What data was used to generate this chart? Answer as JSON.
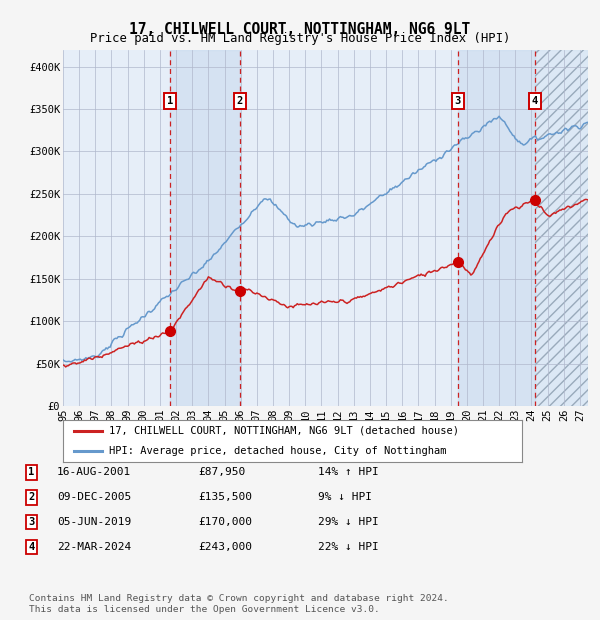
{
  "title": "17, CHILWELL COURT, NOTTINGHAM, NG6 9LT",
  "subtitle": "Price paid vs. HM Land Registry's House Price Index (HPI)",
  "ylim": [
    0,
    420000
  ],
  "yticks": [
    0,
    50000,
    100000,
    150000,
    200000,
    250000,
    300000,
    350000,
    400000
  ],
  "ytick_labels": [
    "£0",
    "£50K",
    "£100K",
    "£150K",
    "£200K",
    "£250K",
    "£300K",
    "£350K",
    "£400K"
  ],
  "xlim_start": 1995.3,
  "xlim_end": 2027.5,
  "xticks": [
    1995,
    1996,
    1997,
    1998,
    1999,
    2000,
    2001,
    2002,
    2003,
    2004,
    2005,
    2006,
    2007,
    2008,
    2009,
    2010,
    2011,
    2012,
    2013,
    2014,
    2015,
    2016,
    2017,
    2018,
    2019,
    2020,
    2021,
    2022,
    2023,
    2024,
    2025,
    2026,
    2027
  ],
  "background_color": "#f5f5f5",
  "plot_bg_color": "#e6eef8",
  "grid_color": "#b0b8cc",
  "hpi_line_color": "#6699cc",
  "price_line_color": "#cc2222",
  "sale_dot_color": "#cc0000",
  "vline_color": "#cc2222",
  "shade_color": "#ccddf0",
  "sale_events": [
    {
      "label": "1",
      "year": 2001.62,
      "price": 87950
    },
    {
      "label": "2",
      "year": 2005.94,
      "price": 135500
    },
    {
      "label": "3",
      "year": 2019.43,
      "price": 170000
    },
    {
      "label": "4",
      "year": 2024.22,
      "price": 243000
    }
  ],
  "legend_label_price": "17, CHILWELL COURT, NOTTINGHAM, NG6 9LT (detached house)",
  "legend_label_hpi": "HPI: Average price, detached house, City of Nottingham",
  "table_rows": [
    {
      "num": "1",
      "date": "16-AUG-2001",
      "price": "£87,950",
      "hpi": "14% ↑ HPI"
    },
    {
      "num": "2",
      "date": "09-DEC-2005",
      "price": "£135,500",
      "hpi": "9% ↓ HPI"
    },
    {
      "num": "3",
      "date": "05-JUN-2019",
      "price": "£170,000",
      "hpi": "29% ↓ HPI"
    },
    {
      "num": "4",
      "date": "22-MAR-2024",
      "price": "£243,000",
      "hpi": "22% ↓ HPI"
    }
  ],
  "footnote": "Contains HM Land Registry data © Crown copyright and database right 2024.\nThis data is licensed under the Open Government Licence v3.0."
}
